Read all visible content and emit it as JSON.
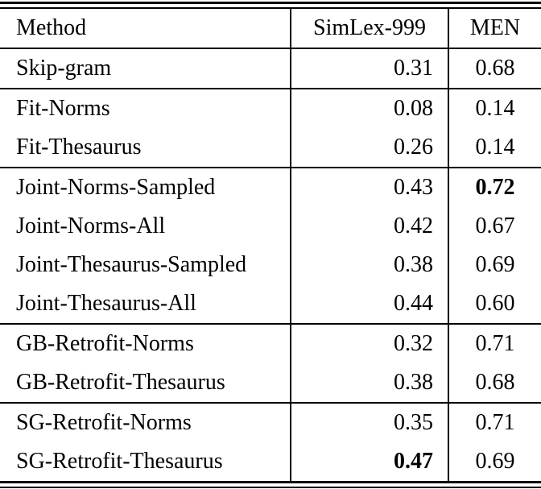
{
  "table": {
    "columns": [
      "Method",
      "SimLex-999",
      "MEN"
    ],
    "rows": [
      {
        "method": "Skip-gram",
        "simlex": "0.31",
        "men": "0.68"
      },
      {
        "method": "Fit-Norms",
        "simlex": "0.08",
        "men": "0.14"
      },
      {
        "method": "Fit-Thesaurus",
        "simlex": "0.26",
        "men": "0.14"
      },
      {
        "method": "Joint-Norms-Sampled",
        "simlex": "0.43",
        "men": "0.72",
        "men_bold": true
      },
      {
        "method": "Joint-Norms-All",
        "simlex": "0.42",
        "men": "0.67"
      },
      {
        "method": "Joint-Thesaurus-Sampled",
        "simlex": "0.38",
        "men": "0.69"
      },
      {
        "method": "Joint-Thesaurus-All",
        "simlex": "0.44",
        "men": "0.60"
      },
      {
        "method": "GB-Retrofit-Norms",
        "simlex": "0.32",
        "men": "0.71"
      },
      {
        "method": "GB-Retrofit-Thesaurus",
        "simlex": "0.38",
        "men": "0.68"
      },
      {
        "method": "SG-Retrofit-Norms",
        "simlex": "0.35",
        "men": "0.71"
      },
      {
        "method": "SG-Retrofit-Thesaurus",
        "simlex": "0.47",
        "men": "0.69",
        "simlex_bold": true
      }
    ]
  },
  "colors": {
    "text": "#000000",
    "rule": "#000000",
    "background": "#ffffff"
  }
}
